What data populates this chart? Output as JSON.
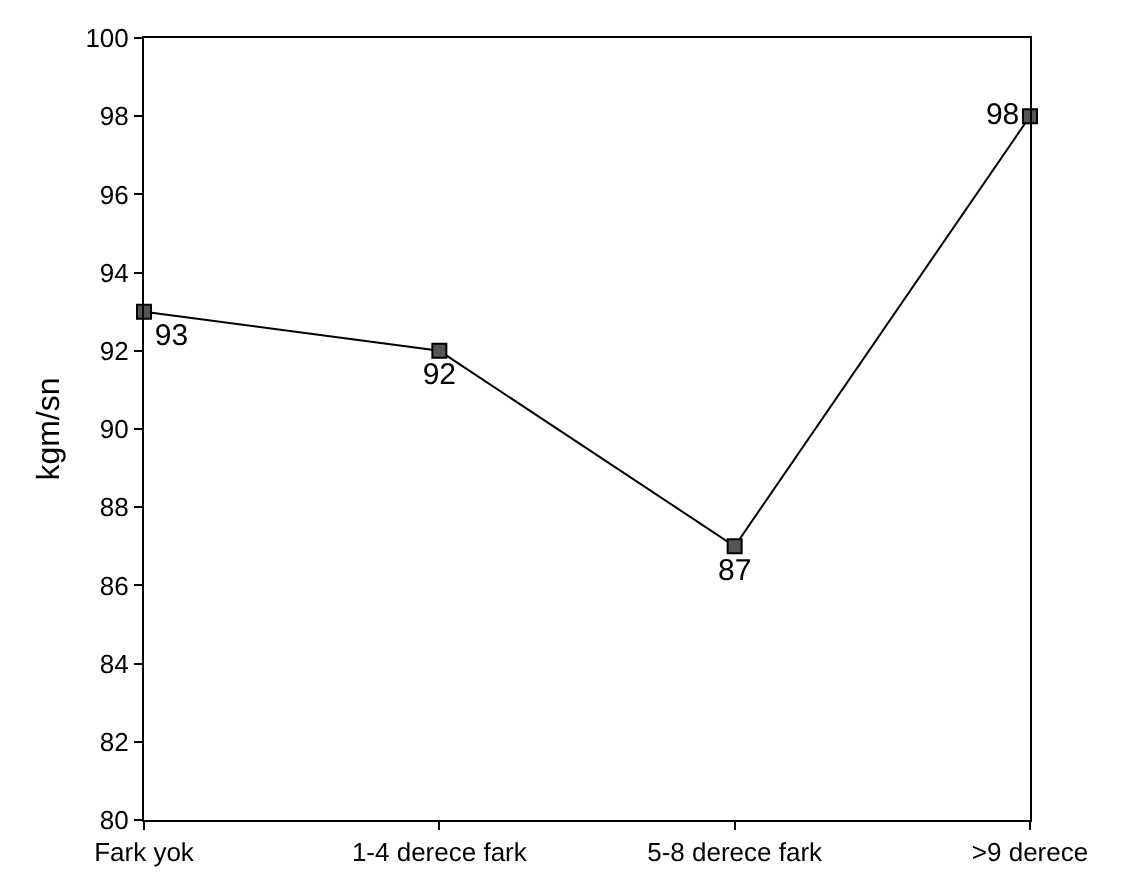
{
  "chart_data": {
    "type": "line",
    "ylabel": "kgm/sn",
    "categories": [
      "Fark yok",
      "1-4 derece fark",
      "5-8 derece fark",
      ">9 derece"
    ],
    "series": [
      {
        "color": "#000000",
        "values": [
          93,
          92,
          87,
          98
        ]
      }
    ],
    "ylim": [
      80,
      100
    ],
    "yticks": [
      80,
      82,
      84,
      86,
      88,
      90,
      92,
      94,
      96,
      98,
      100
    ],
    "data_labels": true,
    "marker": "square",
    "line_style": "solid"
  }
}
